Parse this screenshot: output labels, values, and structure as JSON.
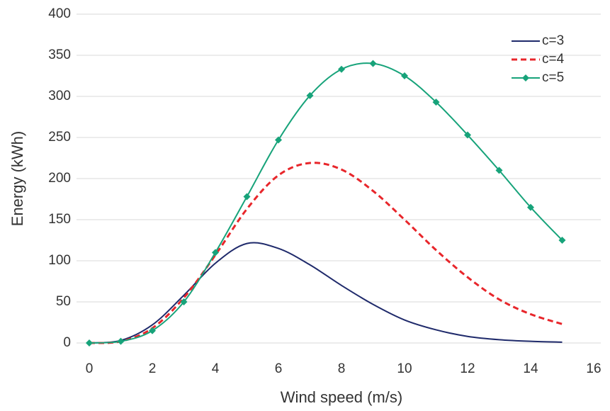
{
  "chart_data": {
    "type": "line",
    "x_label": "Wind speed (m/s)",
    "y_label": "Energy (kWh)",
    "x": [
      0,
      1,
      2,
      3,
      4,
      5,
      6,
      7,
      8,
      9,
      10,
      11,
      12,
      13,
      14,
      15
    ],
    "series": [
      {
        "name": "c=3",
        "color": "#1f2a6b",
        "dashed": false,
        "marker": "none",
        "values": [
          0,
          3,
          22,
          58,
          97,
          121,
          115,
          95,
          70,
          47,
          28,
          16,
          8,
          4,
          2,
          1
        ]
      },
      {
        "name": "c=4",
        "color": "#e8262b",
        "dashed": true,
        "marker": "none",
        "values": [
          0,
          2,
          18,
          55,
          107,
          163,
          204,
          219,
          211,
          185,
          150,
          113,
          80,
          53,
          35,
          23
        ]
      },
      {
        "name": "c=5",
        "color": "#17a37a",
        "dashed": false,
        "marker": "diamond",
        "values": [
          0,
          2,
          15,
          50,
          110,
          178,
          247,
          301,
          333,
          340,
          325,
          293,
          253,
          210,
          165,
          125
        ]
      }
    ],
    "xlim": [
      0,
      16
    ],
    "xticks": [
      0,
      2,
      4,
      6,
      8,
      10,
      12,
      14,
      16
    ],
    "ylim": [
      0,
      400
    ],
    "yticks": [
      0,
      50,
      100,
      150,
      200,
      250,
      300,
      350,
      400
    ],
    "grid": true,
    "legend": "top-right"
  }
}
